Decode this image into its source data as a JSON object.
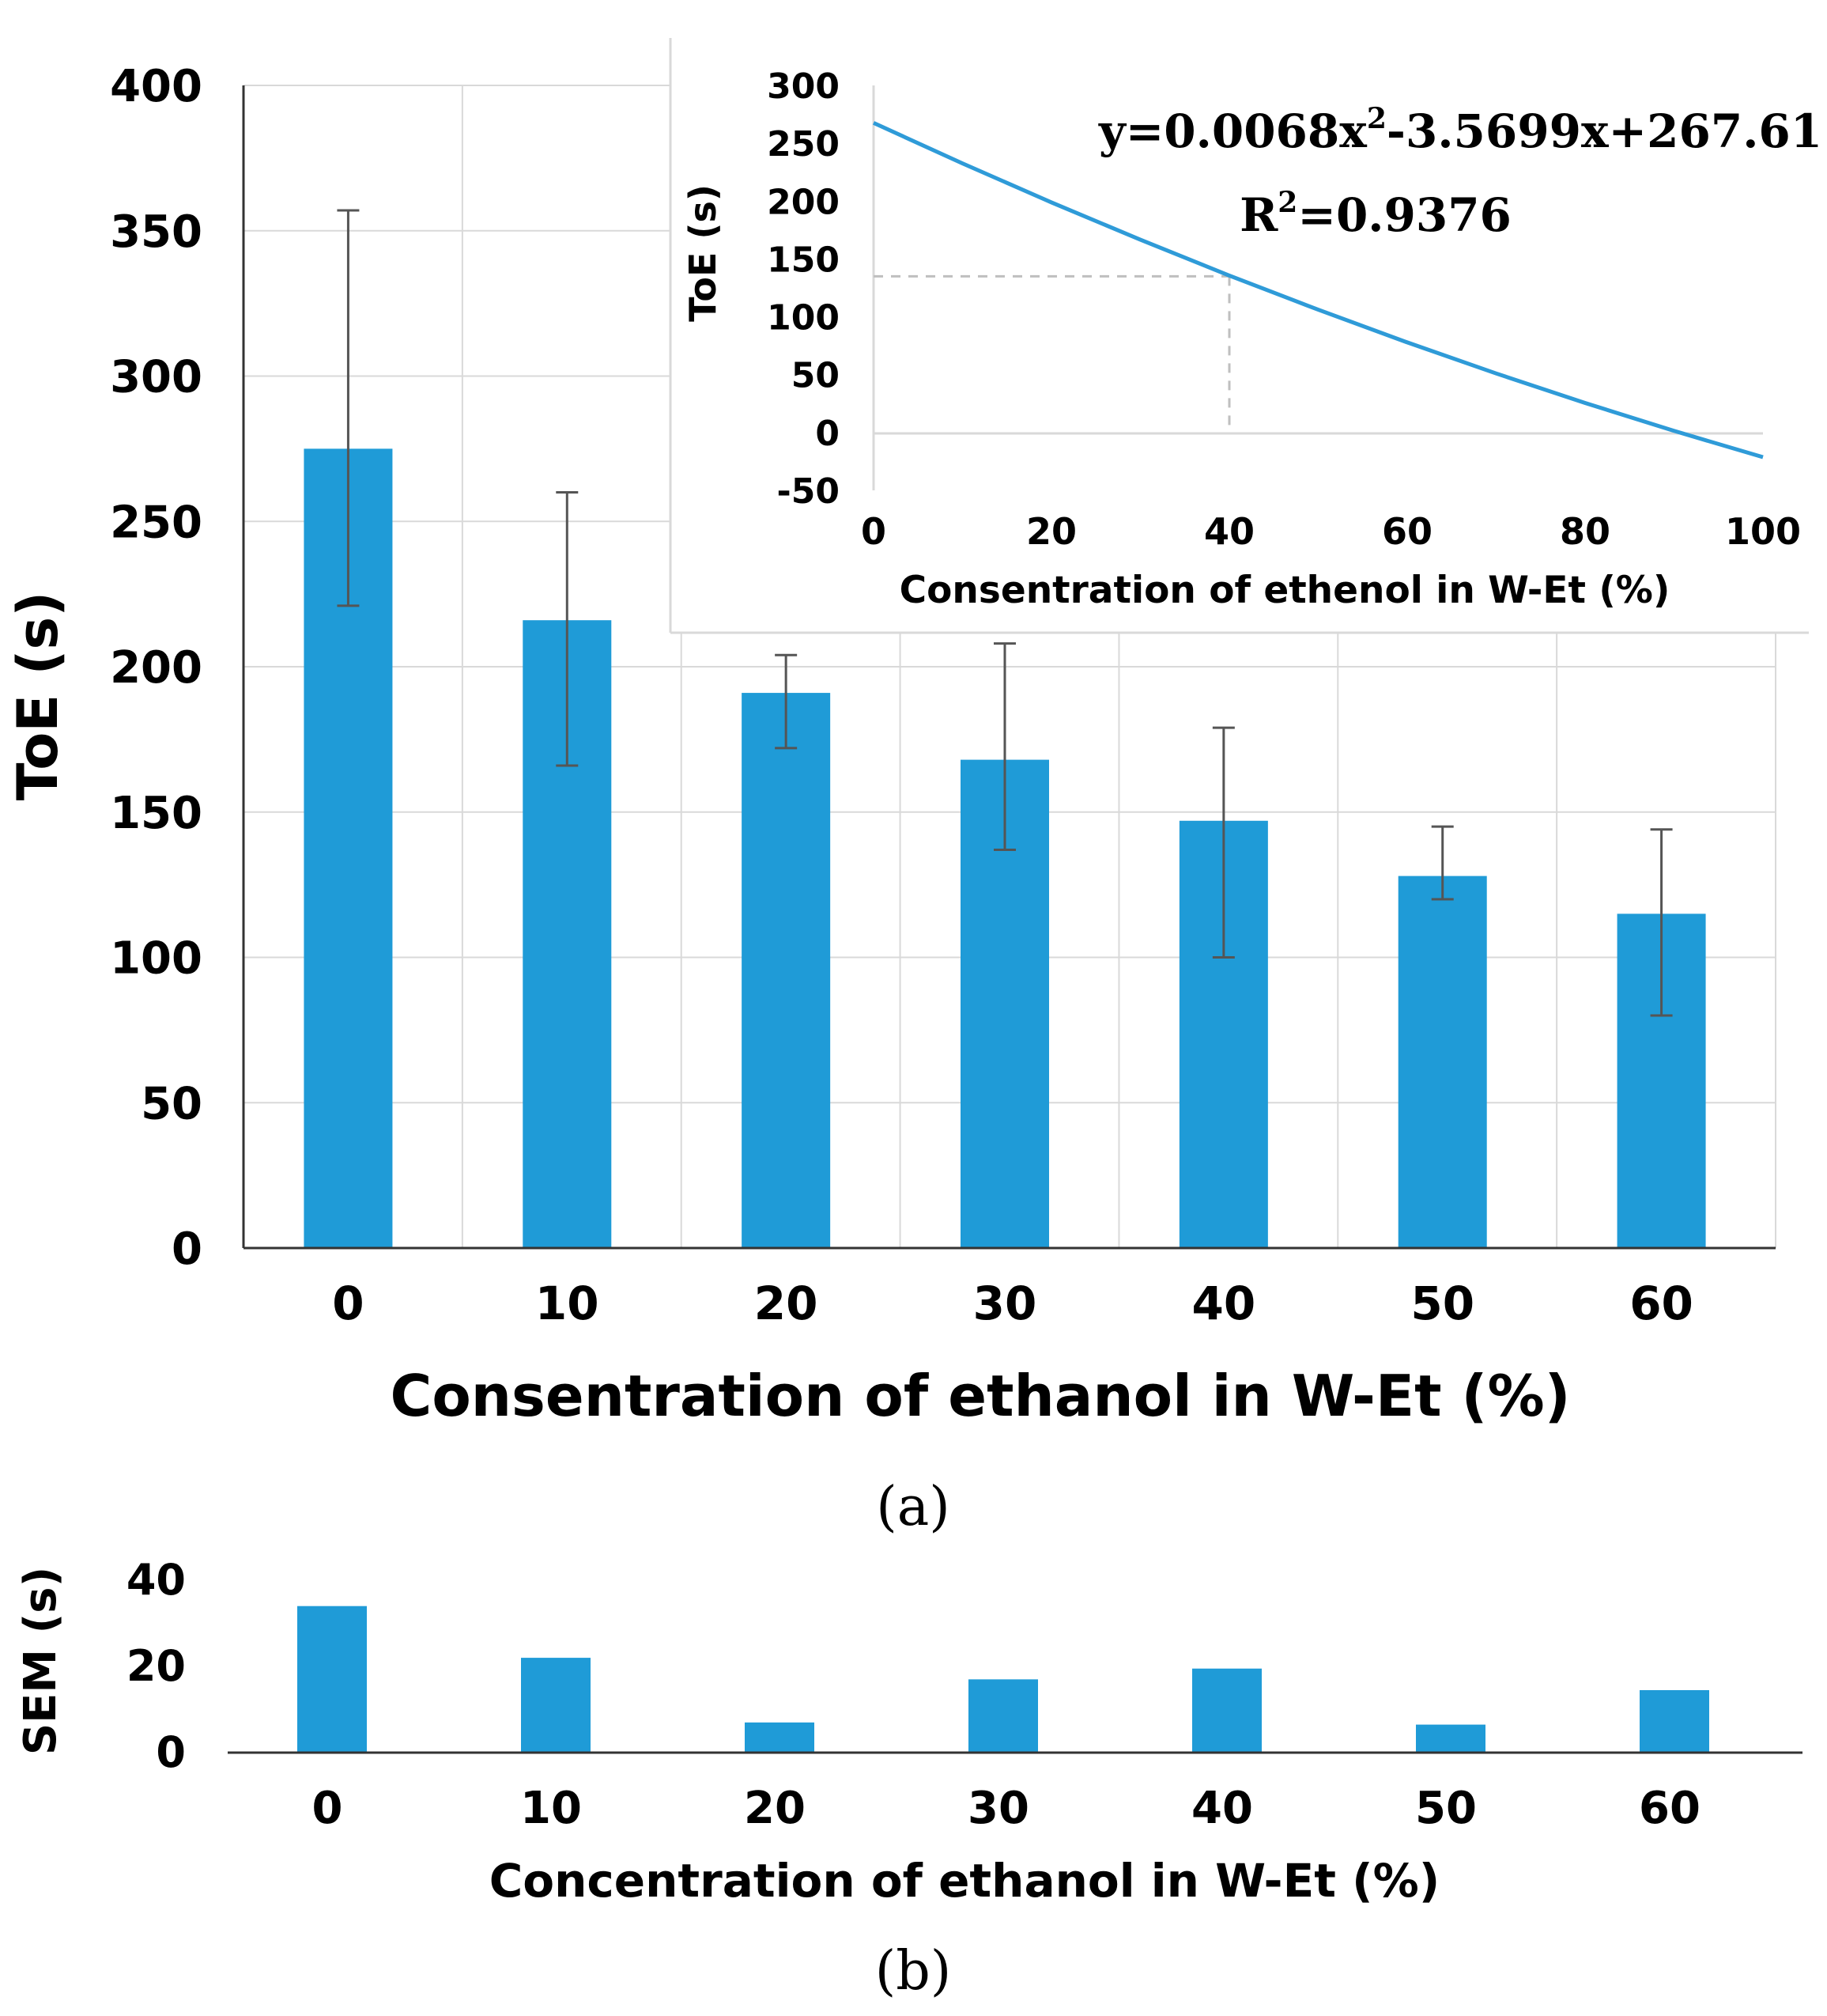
{
  "colors": {
    "bar": "#1f9bd7",
    "curve": "#2f9bd8",
    "error_bar": "#555555",
    "grid": "#d9d9d9",
    "axis": "#333333"
  },
  "chart_data": [
    {
      "type": "bar",
      "panel_label": "(a)",
      "categories": [
        "0",
        "10",
        "20",
        "30",
        "40",
        "50",
        "60"
      ],
      "values": [
        275,
        216,
        191,
        168,
        147,
        128,
        115
      ],
      "error_low": [
        221,
        166,
        172,
        137,
        100,
        120,
        80
      ],
      "error_high": [
        357,
        260,
        204,
        208,
        179,
        145,
        144
      ],
      "ylabel": "ToE (s)",
      "xlabel": "Consentration of ethanol in W-Et (%)",
      "ylim": [
        0,
        400
      ],
      "yticks": [
        "0",
        "50",
        "100",
        "150",
        "200",
        "250",
        "300",
        "350",
        "400"
      ],
      "grid": true
    },
    {
      "type": "line",
      "role": "inset",
      "placement": "top-right",
      "x": [
        0,
        10,
        20,
        30,
        40,
        50,
        60,
        70,
        80,
        90,
        100
      ],
      "y": [
        267.61,
        232.59,
        198.93,
        166.63,
        135.69,
        106.12,
        77.9,
        51.05,
        25.57,
        1.44,
        -21.31
      ],
      "equation_parts": [
        "y=0.0068x",
        "2",
        "-3.5699x+267.61"
      ],
      "r2_parts": [
        "R",
        "2",
        "=0.9376"
      ],
      "highlight": {
        "x": 40,
        "y": 135
      },
      "ylabel": "ToE (s)",
      "xlabel": "Consentration of ethenol in W-Et (%)",
      "xlim": [
        0,
        100
      ],
      "ylim": [
        -50,
        300
      ],
      "xticks": [
        "0",
        "20",
        "40",
        "60",
        "80",
        "100"
      ],
      "yticks": [
        "300",
        "250",
        "200",
        "150",
        "100",
        "50",
        "0",
        "-50"
      ]
    },
    {
      "type": "bar",
      "panel_label": "(b)",
      "categories": [
        "0",
        "10",
        "20",
        "30",
        "40",
        "50",
        "60"
      ],
      "values": [
        34,
        22,
        7,
        17,
        19.5,
        6.5,
        14.5
      ],
      "ylabel": "SEM (s)",
      "xlabel": "Concentration of ethanol in W-Et (%)",
      "ylim": [
        0,
        40
      ],
      "yticks": [
        "40",
        "20",
        "0"
      ]
    }
  ]
}
